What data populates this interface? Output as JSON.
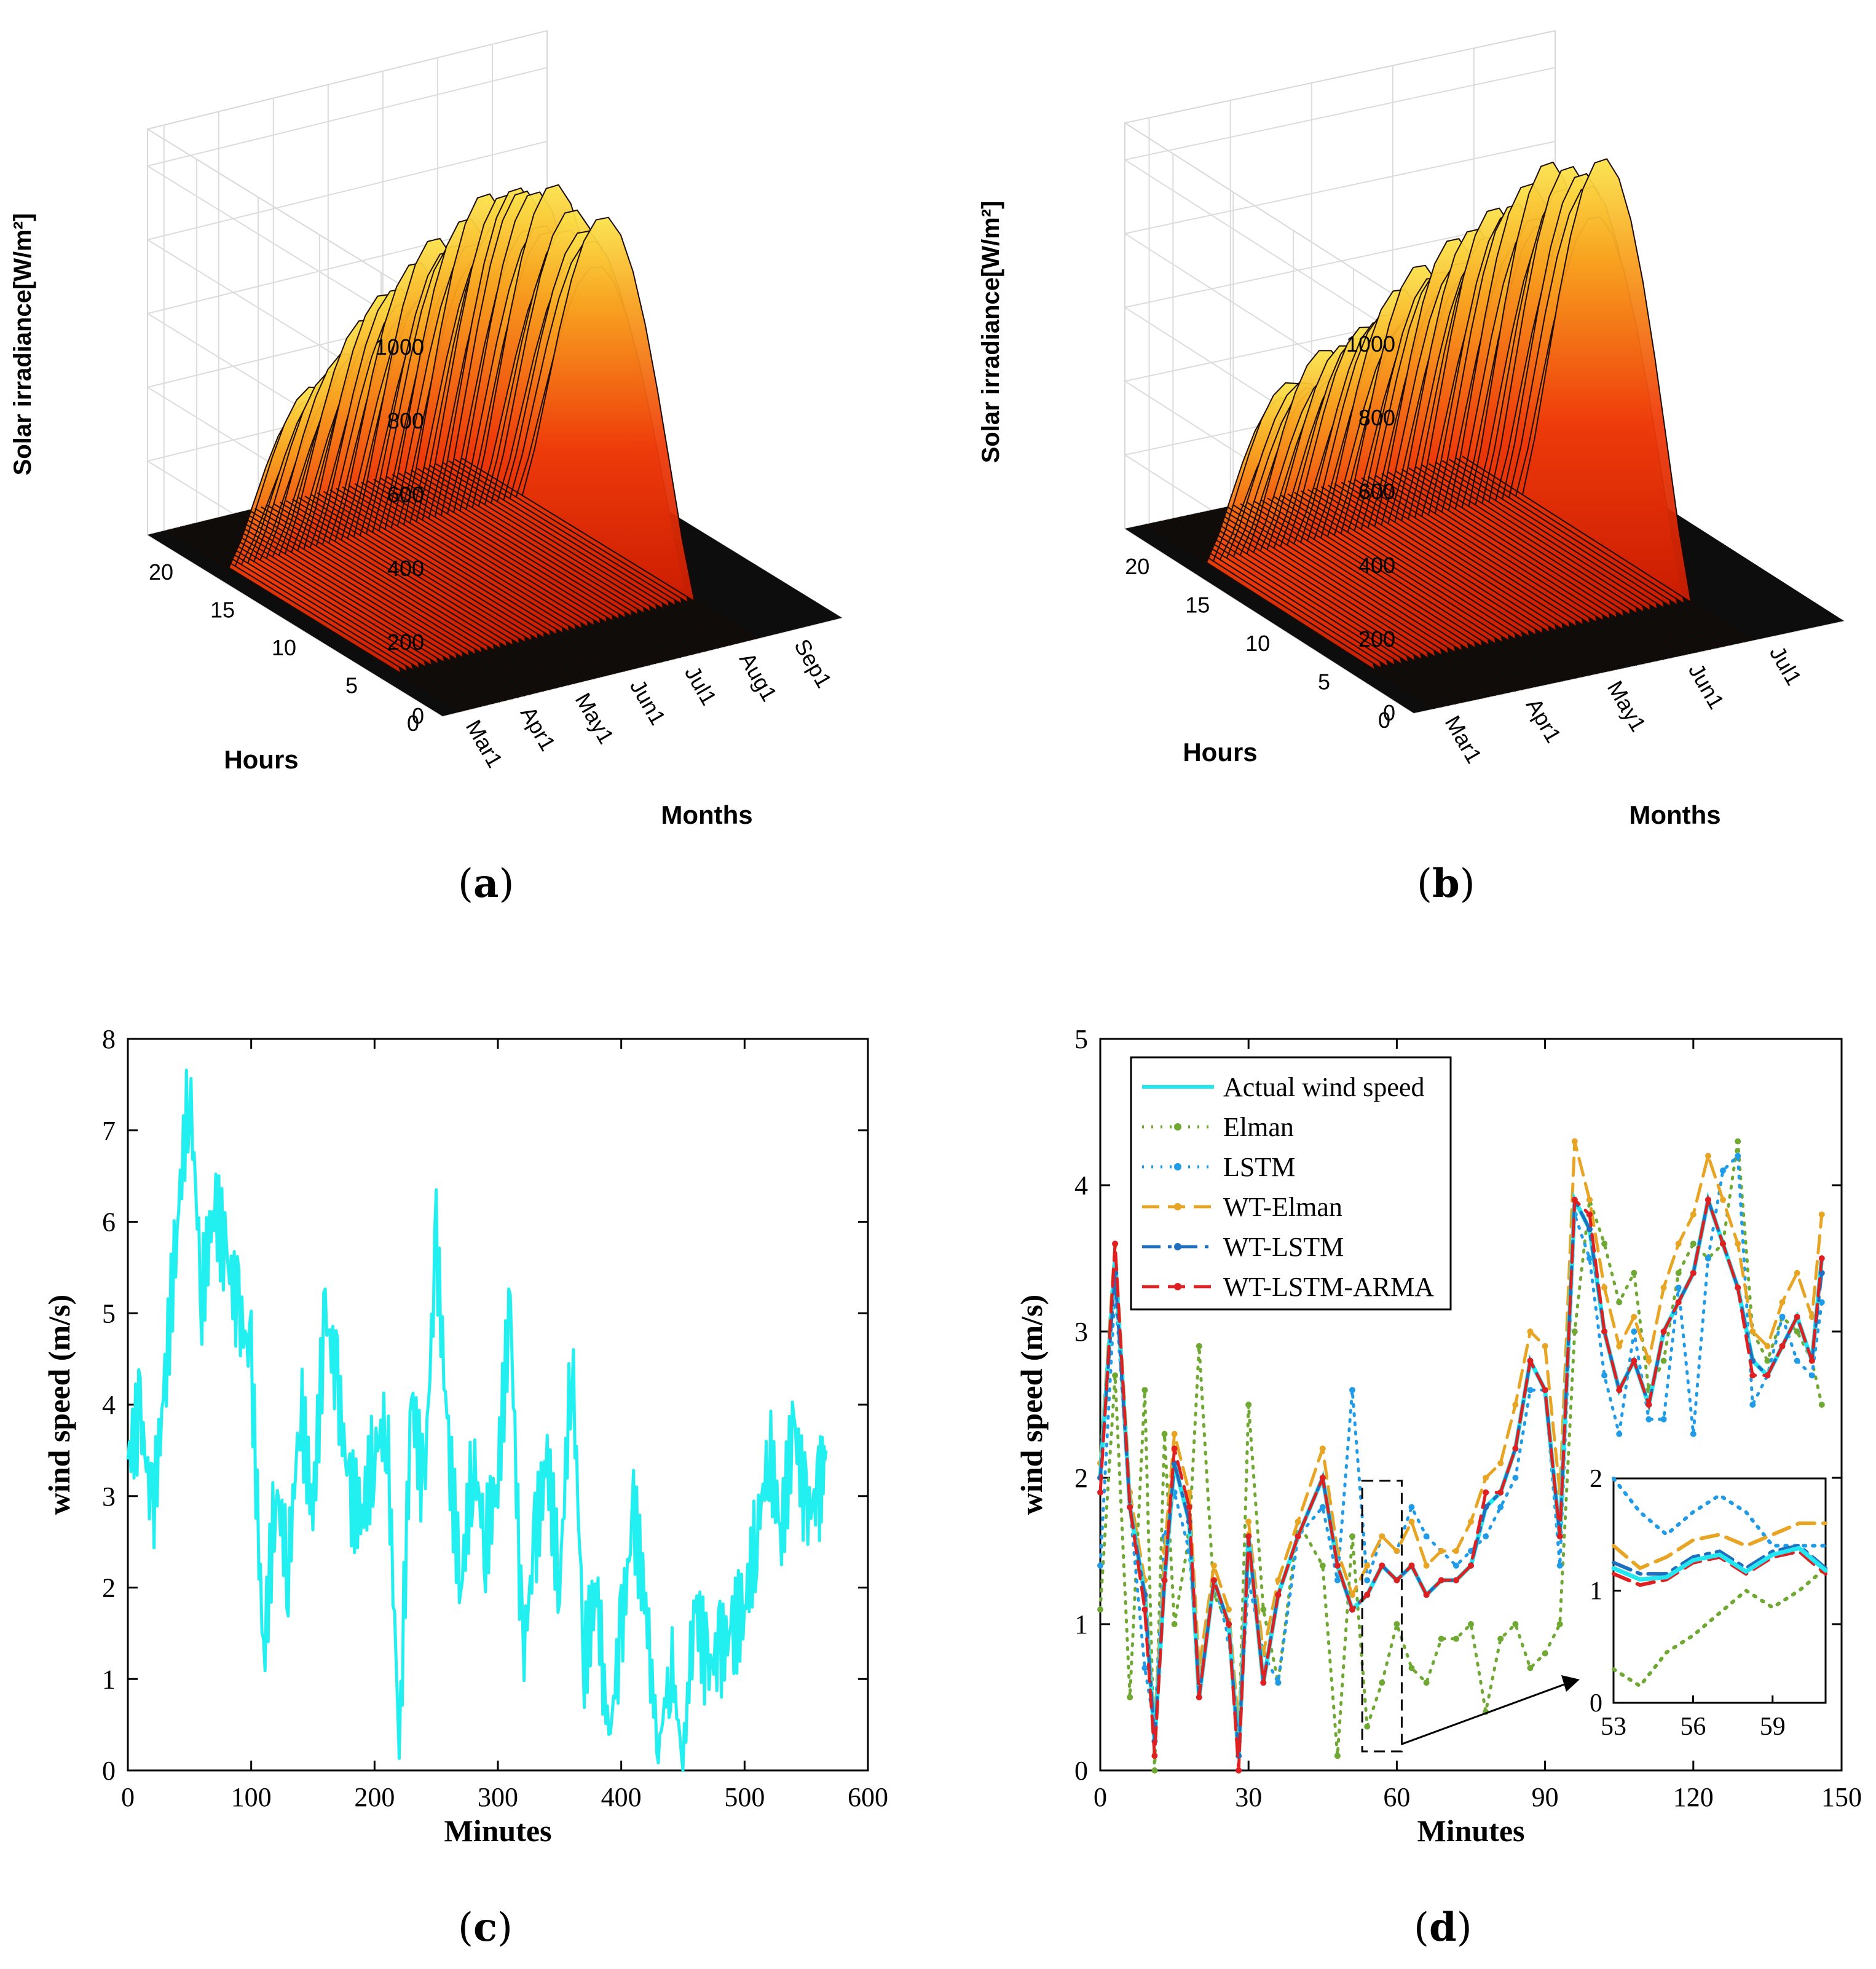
{
  "panels": {
    "a": {
      "label": "a"
    },
    "b": {
      "label": "b"
    },
    "c": {
      "label": "c"
    },
    "d": {
      "label": "d"
    }
  },
  "chart_data": [
    {
      "id": "a",
      "type": "surface",
      "zlabel": "Solar irradiance[W/m²]",
      "ylabel": "Hours",
      "xlabel": "Months",
      "zticks": [
        "0",
        "200",
        "400",
        "600",
        "800",
        "1000"
      ],
      "zlim": [
        0,
        1100
      ],
      "yticks": [
        "0",
        "5",
        "10",
        "15",
        "20"
      ],
      "xticks": [
        "Mar1",
        "Apr1",
        "May1",
        "Jun1",
        "Jul1",
        "Aug1",
        "Sep1"
      ],
      "peak_daily_max": [
        640,
        700,
        780,
        860,
        900,
        960,
        1000,
        1040,
        1080,
        1020,
        960,
        900
      ]
    },
    {
      "id": "b",
      "type": "surface",
      "zlabel": "Solar irradiance[W/m²]",
      "ylabel": "Hours",
      "xlabel": "Months",
      "zticks": [
        "0",
        "200",
        "400",
        "600",
        "800",
        "1000"
      ],
      "zlim": [
        0,
        1100
      ],
      "yticks": [
        "0",
        "5",
        "10",
        "15",
        "20"
      ],
      "xticks": [
        "Mar1",
        "Apr1",
        "May1",
        "Jun1",
        "Jul1"
      ],
      "peak_daily_max": [
        640,
        700,
        760,
        820,
        880,
        940,
        1000,
        1040,
        1080,
        1060
      ]
    },
    {
      "id": "c",
      "type": "line",
      "xlabel": "Minutes",
      "ylabel": "wind speed  (m/s)",
      "xlim": [
        0,
        600
      ],
      "ylim": [
        0,
        8
      ],
      "xticks": [
        "0",
        "100",
        "200",
        "300",
        "400",
        "500",
        "600"
      ],
      "yticks": [
        "0",
        "1",
        "2",
        "3",
        "4",
        "5",
        "6",
        "7",
        "8"
      ],
      "series": [
        {
          "name": "wind speed",
          "color": "#22f0f0",
          "x": [
            0,
            10,
            20,
            30,
            40,
            50,
            60,
            70,
            80,
            90,
            100,
            110,
            120,
            130,
            140,
            150,
            160,
            170,
            180,
            190,
            200,
            210,
            220,
            230,
            240,
            250,
            260,
            270,
            280,
            290,
            300,
            310,
            320,
            330,
            340,
            350,
            360,
            370,
            380,
            390,
            400,
            410,
            420,
            430,
            440,
            450,
            460,
            470,
            480,
            490,
            500,
            510,
            520,
            530,
            540,
            550,
            560,
            566
          ],
          "y": [
            3.4,
            3.9,
            2.8,
            4.2,
            6.0,
            7.5,
            5.2,
            6.2,
            5.6,
            5.0,
            4.5,
            1.2,
            3.1,
            2.2,
            4.0,
            2.8,
            5.0,
            4.2,
            3.0,
            2.8,
            3.5,
            3.8,
            0.3,
            4.1,
            3.0,
            5.8,
            3.5,
            2.0,
            3.4,
            2.5,
            3.2,
            5.1,
            1.2,
            2.5,
            3.4,
            2.0,
            4.6,
            1.2,
            2.0,
            0.3,
            1.5,
            2.8,
            1.8,
            0.2,
            1.2,
            0.1,
            1.8,
            1.1,
            1.3,
            1.5,
            1.8,
            2.6,
            3.5,
            2.6,
            3.8,
            2.8,
            3.0,
            3.5
          ]
        }
      ]
    },
    {
      "id": "d",
      "type": "line",
      "xlabel": "Minutes",
      "ylabel": "wind speed  (m/s)",
      "xlim": [
        0,
        150
      ],
      "ylim": [
        0,
        5
      ],
      "xticks": [
        "0",
        "30",
        "60",
        "90",
        "120",
        "150"
      ],
      "yticks": [
        "0",
        "1",
        "2",
        "3",
        "4",
        "5"
      ],
      "legend": [
        "Actual wind speed",
        "Elman",
        "LSTM",
        "WT-Elman",
        "WT-LSTM",
        "WT-LSTM-ARMA"
      ],
      "x": [
        0,
        3,
        6,
        9,
        11,
        13,
        15,
        18,
        20,
        23,
        26,
        28,
        30,
        33,
        36,
        40,
        45,
        48,
        51,
        54,
        57,
        60,
        63,
        66,
        69,
        72,
        75,
        78,
        81,
        84,
        87,
        90,
        93,
        96,
        99,
        102,
        105,
        108,
        111,
        114,
        117,
        120,
        123,
        126,
        129,
        132,
        135,
        138,
        141,
        144,
        146
      ],
      "series": [
        {
          "name": "Actual wind speed",
          "color": "#22e6f0",
          "style": "solid",
          "values": [
            2.0,
            3.5,
            1.8,
            1.2,
            0.2,
            1.3,
            2.1,
            1.7,
            0.5,
            1.3,
            1.0,
            0.1,
            1.6,
            0.6,
            1.2,
            1.6,
            2.0,
            1.4,
            1.1,
            1.2,
            1.4,
            1.3,
            1.4,
            1.2,
            1.3,
            1.3,
            1.4,
            1.8,
            1.9,
            2.2,
            2.8,
            2.6,
            1.6,
            3.9,
            3.7,
            3.0,
            2.6,
            2.8,
            2.5,
            3.0,
            3.2,
            3.4,
            3.9,
            3.6,
            3.3,
            2.8,
            2.7,
            2.9,
            3.1,
            2.8,
            3.5
          ]
        },
        {
          "name": "Elman",
          "color": "#6fa832",
          "style": "dotted",
          "values": [
            1.1,
            2.7,
            0.5,
            2.6,
            0.0,
            2.3,
            1.0,
            1.6,
            2.9,
            1.2,
            1.0,
            0.2,
            2.5,
            1.1,
            0.6,
            1.7,
            1.4,
            0.1,
            1.6,
            0.3,
            0.6,
            1.0,
            0.7,
            0.6,
            0.9,
            0.9,
            1.0,
            0.4,
            0.9,
            1.0,
            0.7,
            0.8,
            1.0,
            3.0,
            3.9,
            3.6,
            3.2,
            3.4,
            2.6,
            2.8,
            3.4,
            3.6,
            3.5,
            3.6,
            4.3,
            3.0,
            2.8,
            3.1,
            3.0,
            2.8,
            2.5
          ]
        },
        {
          "name": "LSTM",
          "color": "#1f9be8",
          "style": "dotted",
          "values": [
            1.4,
            3.3,
            1.8,
            0.7,
            0.3,
            1.6,
            1.9,
            1.5,
            0.6,
            1.3,
            0.9,
            0.2,
            1.3,
            0.8,
            0.6,
            1.6,
            1.8,
            1.3,
            2.6,
            1.3,
            1.6,
            1.5,
            1.8,
            1.6,
            1.5,
            1.4,
            1.5,
            1.6,
            1.8,
            2.0,
            2.6,
            2.6,
            1.4,
            3.8,
            3.5,
            2.7,
            2.3,
            3.0,
            2.4,
            2.4,
            3.3,
            2.3,
            3.5,
            4.1,
            4.2,
            2.5,
            2.7,
            3.1,
            2.8,
            2.7,
            3.2
          ]
        },
        {
          "name": "WT-Elman",
          "color": "#e8a423",
          "style": "dashed",
          "values": [
            2.1,
            3.6,
            1.9,
            1.3,
            0.3,
            1.5,
            2.3,
            1.9,
            0.7,
            1.4,
            1.1,
            0.3,
            1.7,
            0.8,
            1.3,
            1.7,
            2.2,
            1.5,
            1.2,
            1.4,
            1.6,
            1.5,
            1.7,
            1.4,
            1.5,
            1.5,
            1.7,
            2.0,
            2.1,
            2.5,
            3.0,
            2.9,
            1.9,
            4.3,
            3.9,
            3.3,
            2.9,
            3.1,
            2.8,
            3.3,
            3.6,
            3.8,
            4.2,
            3.9,
            3.6,
            3.0,
            2.9,
            3.2,
            3.4,
            3.1,
            3.8
          ]
        },
        {
          "name": "WT-LSTM",
          "color": "#1f6fc0",
          "style": "dashdot",
          "values": [
            2.0,
            3.4,
            1.8,
            1.2,
            0.2,
            1.3,
            2.1,
            1.7,
            0.5,
            1.3,
            1.0,
            0.1,
            1.6,
            0.6,
            1.2,
            1.6,
            2.0,
            1.4,
            1.1,
            1.2,
            1.4,
            1.3,
            1.4,
            1.2,
            1.3,
            1.3,
            1.4,
            1.8,
            1.9,
            2.2,
            2.8,
            2.6,
            1.6,
            3.9,
            3.7,
            3.0,
            2.6,
            2.8,
            2.5,
            3.0,
            3.2,
            3.4,
            3.9,
            3.6,
            3.3,
            2.8,
            2.7,
            2.9,
            3.1,
            2.8,
            3.4
          ]
        },
        {
          "name": "WT-LSTM-ARMA",
          "color": "#e02020",
          "style": "dashed",
          "values": [
            1.9,
            3.6,
            1.8,
            1.1,
            0.1,
            1.3,
            2.2,
            1.8,
            0.5,
            1.3,
            1.0,
            0.0,
            1.6,
            0.6,
            1.2,
            1.6,
            2.0,
            1.4,
            1.1,
            1.2,
            1.4,
            1.3,
            1.4,
            1.2,
            1.3,
            1.3,
            1.4,
            1.9,
            1.9,
            2.2,
            2.8,
            2.6,
            1.6,
            3.9,
            3.8,
            3.0,
            2.6,
            2.8,
            2.5,
            3.0,
            3.2,
            3.4,
            3.9,
            3.6,
            3.3,
            2.7,
            2.7,
            2.9,
            3.1,
            2.8,
            3.5
          ]
        }
      ],
      "inset": {
        "xlim": [
          53,
          61
        ],
        "ylim": [
          0,
          2
        ],
        "xticks": [
          "53",
          "56",
          "59"
        ],
        "yticks": [
          "0",
          "1",
          "2"
        ],
        "x": [
          53,
          54,
          55,
          56,
          57,
          58,
          59,
          60,
          61
        ],
        "series": [
          {
            "name": "Elman",
            "values": [
              0.3,
              0.15,
              0.45,
              0.6,
              0.8,
              1.0,
              0.85,
              1.0,
              1.2
            ]
          },
          {
            "name": "LSTM",
            "values": [
              2.0,
              1.7,
              1.5,
              1.7,
              1.85,
              1.7,
              1.4,
              1.4,
              1.4
            ]
          },
          {
            "name": "WT-Elman",
            "values": [
              1.4,
              1.2,
              1.3,
              1.45,
              1.5,
              1.4,
              1.5,
              1.6,
              1.6
            ]
          },
          {
            "name": "WT-LSTM",
            "values": [
              1.25,
              1.15,
              1.15,
              1.3,
              1.35,
              1.2,
              1.35,
              1.4,
              1.2
            ]
          },
          {
            "name": "WT-LSTM-ARMA",
            "values": [
              1.15,
              1.05,
              1.1,
              1.25,
              1.3,
              1.15,
              1.3,
              1.35,
              1.15
            ]
          },
          {
            "name": "Actual wind speed",
            "values": [
              1.2,
              1.1,
              1.12,
              1.27,
              1.32,
              1.17,
              1.32,
              1.38,
              1.18
            ]
          }
        ]
      }
    }
  ]
}
